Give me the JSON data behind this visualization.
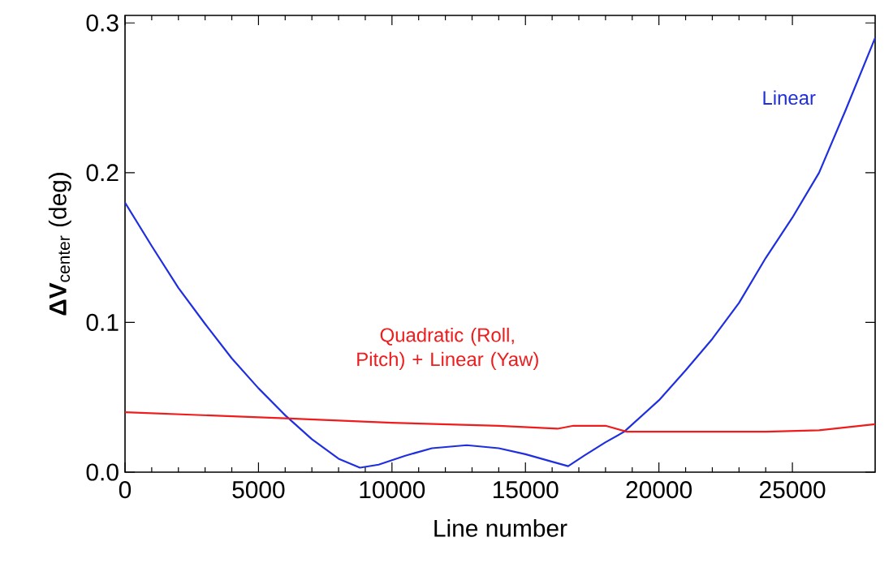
{
  "chart_data": {
    "type": "line",
    "xlabel": "Line number",
    "ylabel": "**ΔV**$_{center}$ (deg)",
    "xlim": [
      0,
      28100
    ],
    "ylim": [
      0,
      0.305
    ],
    "xticks": [
      0,
      5000,
      10000,
      15000,
      20000,
      25000
    ],
    "yticks": [
      {
        "value": 0,
        "label": "0.0"
      },
      {
        "value": 0.1,
        "label": "0.1"
      },
      {
        "value": 0.2,
        "label": "0.2"
      },
      {
        "value": 0.3,
        "label": "0.3"
      }
    ],
    "grid": false,
    "marker": "none",
    "line_style": "solid",
    "series": [
      {
        "name": "Linear",
        "color": "#1f2fe0",
        "x": [
          0,
          1000,
          2000,
          3000,
          4000,
          5000,
          6000,
          7000,
          8000,
          8800,
          9500,
          10500,
          11500,
          12800,
          14000,
          15000,
          16000,
          16600,
          17200,
          18000,
          18700,
          20000,
          21000,
          22000,
          23000,
          24000,
          25000,
          26000,
          27000,
          28100
        ],
        "values": [
          0.18,
          0.151,
          0.123,
          0.099,
          0.076,
          0.056,
          0.038,
          0.022,
          0.009,
          0.003,
          0.005,
          0.011,
          0.016,
          0.018,
          0.016,
          0.012,
          0.007,
          0.004,
          0.011,
          0.02,
          0.027,
          0.048,
          0.068,
          0.089,
          0.113,
          0.143,
          0.17,
          0.2,
          0.242,
          0.29
        ]
      },
      {
        "name": "Quadratic (Roll, Pitch) + Linear (Yaw)",
        "color": "#ee1c1c",
        "x": [
          0,
          6000,
          10000,
          14000,
          16200,
          16800,
          18000,
          18800,
          20000,
          24000,
          26000,
          28100
        ],
        "values": [
          0.04,
          0.036,
          0.033,
          0.031,
          0.029,
          0.031,
          0.031,
          0.027,
          0.027,
          0.027,
          0.028,
          0.032
        ]
      }
    ]
  }
}
